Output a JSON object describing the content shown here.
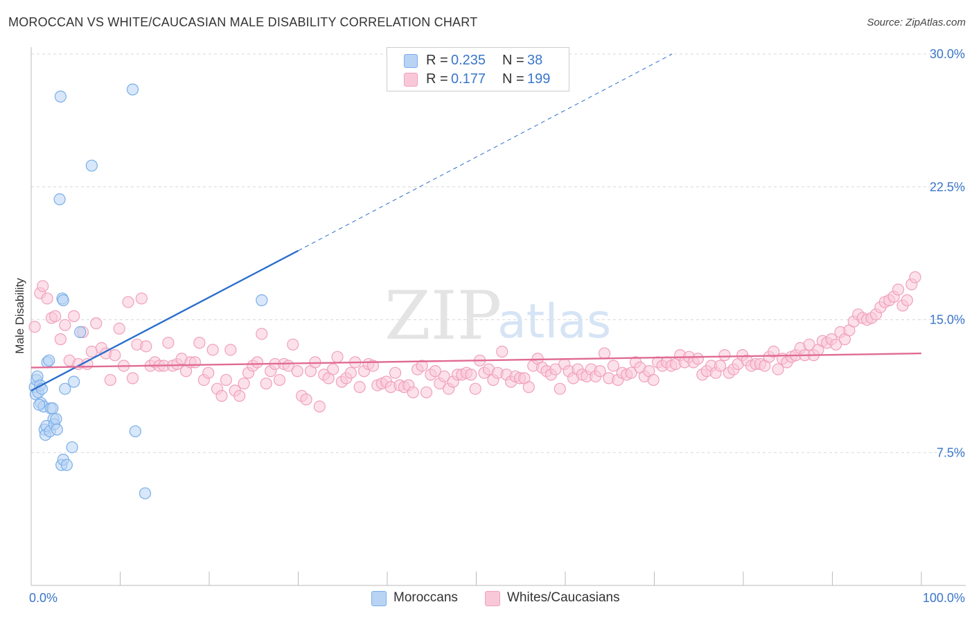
{
  "title": "MOROCCAN VS WHITE/CAUCASIAN MALE DISABILITY CORRELATION CHART",
  "source": "Source: ZipAtlas.com",
  "watermark": {
    "zip": "ZIP",
    "atlas": "atlas"
  },
  "colors": {
    "blue": "#7aaee8",
    "blue_fill": "#b8d3f4",
    "blue_line": "#2b6fcc",
    "pink": "#f0a0ba",
    "pink_fill": "#f9c8d8",
    "pink_line": "#e06a94",
    "tick_text": "#3a76c9",
    "grid": "#d8d8d8"
  },
  "legend": {
    "rows": [
      {
        "r_label": "R =",
        "r_value": "0.235",
        "n_label": "N =",
        "n_value": "38"
      },
      {
        "r_label": "R =",
        "r_value": "0.177",
        "n_label": "N =",
        "n_value": "199"
      }
    ]
  },
  "bottom_legend": [
    "Moroccans",
    "Whites/Caucasians"
  ],
  "chart_data": {
    "type": "scatter",
    "title": "MOROCCAN VS WHITE/CAUCASIAN MALE DISABILITY CORRELATION CHART",
    "xlabel": "",
    "ylabel": "Male Disability",
    "xlim": [
      0,
      100
    ],
    "ylim": [
      0,
      31
    ],
    "x_ticks": [
      "0.0%",
      "100.0%"
    ],
    "y_ticks": [
      {
        "value": 7.5,
        "label": "7.5%"
      },
      {
        "value": 15.0,
        "label": "15.0%"
      },
      {
        "value": 22.5,
        "label": "22.5%"
      },
      {
        "value": 30.0,
        "label": "30.0%"
      }
    ],
    "legend_position": "top-center",
    "series": [
      {
        "name": "Moroccans",
        "color": "#7aaee8",
        "R": 0.235,
        "N": 38,
        "trend": {
          "x_start": 0,
          "y_start": 11.0,
          "x_end": 30,
          "y_end": 18.9,
          "dash_to_x": 72,
          "dash_to_y": 30.0
        },
        "points": [
          [
            0.4,
            11.2
          ],
          [
            0.5,
            10.8
          ],
          [
            0.6,
            11.6
          ],
          [
            0.7,
            11.8
          ],
          [
            0.8,
            10.9
          ],
          [
            1.0,
            11.3
          ],
          [
            1.1,
            10.3
          ],
          [
            1.2,
            11.1
          ],
          [
            1.4,
            10.1
          ],
          [
            1.5,
            8.8
          ],
          [
            1.6,
            8.5
          ],
          [
            1.7,
            9.0
          ],
          [
            1.8,
            12.6
          ],
          [
            2.0,
            12.7
          ],
          [
            2.1,
            8.7
          ],
          [
            2.2,
            10.0
          ],
          [
            2.4,
            10.0
          ],
          [
            2.5,
            9.4
          ],
          [
            2.6,
            9.1
          ],
          [
            2.8,
            9.4
          ],
          [
            2.9,
            8.8
          ],
          [
            3.2,
            21.8
          ],
          [
            3.3,
            27.6
          ],
          [
            3.4,
            6.8
          ],
          [
            3.5,
            16.2
          ],
          [
            3.6,
            7.1
          ],
          [
            3.6,
            16.1
          ],
          [
            3.8,
            11.1
          ],
          [
            4.0,
            6.8
          ],
          [
            4.6,
            7.8
          ],
          [
            4.8,
            11.5
          ],
          [
            5.5,
            14.3
          ],
          [
            6.8,
            23.7
          ],
          [
            11.4,
            28.0
          ],
          [
            11.7,
            8.7
          ],
          [
            12.8,
            5.2
          ],
          [
            25.9,
            16.1
          ],
          [
            0.9,
            10.2
          ]
        ]
      },
      {
        "name": "Whites/Caucasians",
        "color": "#f0a0ba",
        "R": 0.177,
        "N": 199,
        "trend": {
          "x_start": 0,
          "y_start": 12.3,
          "x_end": 100,
          "y_end": 13.1
        },
        "points": [
          [
            0.4,
            14.6
          ],
          [
            1.0,
            16.5
          ],
          [
            1.3,
            16.9
          ],
          [
            1.8,
            16.2
          ],
          [
            2.3,
            15.1
          ],
          [
            2.7,
            15.2
          ],
          [
            3.3,
            13.9
          ],
          [
            3.8,
            14.7
          ],
          [
            4.3,
            12.7
          ],
          [
            4.8,
            15.2
          ],
          [
            5.3,
            12.5
          ],
          [
            5.8,
            14.3
          ],
          [
            6.3,
            12.5
          ],
          [
            6.8,
            13.2
          ],
          [
            7.3,
            14.8
          ],
          [
            7.9,
            13.4
          ],
          [
            8.4,
            13.1
          ],
          [
            8.9,
            11.6
          ],
          [
            9.4,
            13.0
          ],
          [
            9.9,
            14.5
          ],
          [
            10.4,
            12.4
          ],
          [
            10.9,
            16.0
          ],
          [
            11.4,
            11.7
          ],
          [
            11.9,
            13.6
          ],
          [
            12.4,
            16.2
          ],
          [
            12.9,
            13.5
          ],
          [
            13.4,
            12.4
          ],
          [
            13.9,
            12.6
          ],
          [
            14.4,
            12.4
          ],
          [
            14.9,
            12.4
          ],
          [
            15.4,
            13.7
          ],
          [
            15.9,
            12.4
          ],
          [
            16.4,
            12.5
          ],
          [
            16.9,
            12.8
          ],
          [
            17.4,
            12.1
          ],
          [
            17.9,
            12.6
          ],
          [
            18.4,
            12.6
          ],
          [
            18.9,
            13.7
          ],
          [
            19.4,
            11.6
          ],
          [
            19.9,
            12.0
          ],
          [
            20.4,
            13.3
          ],
          [
            20.9,
            11.1
          ],
          [
            21.4,
            10.7
          ],
          [
            21.9,
            11.6
          ],
          [
            22.4,
            13.3
          ],
          [
            22.9,
            11.0
          ],
          [
            23.4,
            10.7
          ],
          [
            23.9,
            11.4
          ],
          [
            24.4,
            12.0
          ],
          [
            24.9,
            12.4
          ],
          [
            25.4,
            12.6
          ],
          [
            25.9,
            14.2
          ],
          [
            26.4,
            11.4
          ],
          [
            26.9,
            12.1
          ],
          [
            27.4,
            12.5
          ],
          [
            27.9,
            11.6
          ],
          [
            28.4,
            12.5
          ],
          [
            28.9,
            12.4
          ],
          [
            29.4,
            13.6
          ],
          [
            29.9,
            12.1
          ],
          [
            30.4,
            10.7
          ],
          [
            30.9,
            10.5
          ],
          [
            31.4,
            12.1
          ],
          [
            31.9,
            12.6
          ],
          [
            32.4,
            10.1
          ],
          [
            32.9,
            11.9
          ],
          [
            33.4,
            11.7
          ],
          [
            33.9,
            12.2
          ],
          [
            34.4,
            12.9
          ],
          [
            34.9,
            11.5
          ],
          [
            35.4,
            11.7
          ],
          [
            35.9,
            12.0
          ],
          [
            36.4,
            12.6
          ],
          [
            36.9,
            11.2
          ],
          [
            37.4,
            12.1
          ],
          [
            37.9,
            12.5
          ],
          [
            38.4,
            12.4
          ],
          [
            38.9,
            11.3
          ],
          [
            39.4,
            11.4
          ],
          [
            39.9,
            11.5
          ],
          [
            40.4,
            11.2
          ],
          [
            40.9,
            12.0
          ],
          [
            41.4,
            11.3
          ],
          [
            41.9,
            11.2
          ],
          [
            42.4,
            11.3
          ],
          [
            42.9,
            10.9
          ],
          [
            43.4,
            12.2
          ],
          [
            43.9,
            12.4
          ],
          [
            44.4,
            10.9
          ],
          [
            44.9,
            11.9
          ],
          [
            45.4,
            12.1
          ],
          [
            45.9,
            11.4
          ],
          [
            46.4,
            11.8
          ],
          [
            46.9,
            11.1
          ],
          [
            47.4,
            11.5
          ],
          [
            47.9,
            11.9
          ],
          [
            48.4,
            11.9
          ],
          [
            48.9,
            12.0
          ],
          [
            49.4,
            11.9
          ],
          [
            49.9,
            11.1
          ],
          [
            50.4,
            12.7
          ],
          [
            50.9,
            12.0
          ],
          [
            51.4,
            12.2
          ],
          [
            51.9,
            11.6
          ],
          [
            52.4,
            12.0
          ],
          [
            52.9,
            13.2
          ],
          [
            53.4,
            11.9
          ],
          [
            53.9,
            11.5
          ],
          [
            54.4,
            11.8
          ],
          [
            54.9,
            11.7
          ],
          [
            55.4,
            11.7
          ],
          [
            55.9,
            11.2
          ],
          [
            56.4,
            12.4
          ],
          [
            56.9,
            12.8
          ],
          [
            57.4,
            12.3
          ],
          [
            57.9,
            12.1
          ],
          [
            58.4,
            11.9
          ],
          [
            58.9,
            12.2
          ],
          [
            59.4,
            11.1
          ],
          [
            59.9,
            12.5
          ],
          [
            60.4,
            12.1
          ],
          [
            60.9,
            11.7
          ],
          [
            61.4,
            12.2
          ],
          [
            61.9,
            11.9
          ],
          [
            62.4,
            11.8
          ],
          [
            62.9,
            12.2
          ],
          [
            63.4,
            11.8
          ],
          [
            63.9,
            12.1
          ],
          [
            64.4,
            13.1
          ],
          [
            64.9,
            11.7
          ],
          [
            65.4,
            12.4
          ],
          [
            65.9,
            11.6
          ],
          [
            66.4,
            12.0
          ],
          [
            66.9,
            11.9
          ],
          [
            67.4,
            12.0
          ],
          [
            67.9,
            12.6
          ],
          [
            68.4,
            12.3
          ],
          [
            68.9,
            11.8
          ],
          [
            69.4,
            12.1
          ],
          [
            69.9,
            11.6
          ],
          [
            70.4,
            12.6
          ],
          [
            70.9,
            12.4
          ],
          [
            71.4,
            12.6
          ],
          [
            71.9,
            12.4
          ],
          [
            72.4,
            12.5
          ],
          [
            72.9,
            13.0
          ],
          [
            73.4,
            12.6
          ],
          [
            73.9,
            12.9
          ],
          [
            74.4,
            12.6
          ],
          [
            74.9,
            12.8
          ],
          [
            75.4,
            11.9
          ],
          [
            75.9,
            12.1
          ],
          [
            76.4,
            12.4
          ],
          [
            76.9,
            12.0
          ],
          [
            77.4,
            12.4
          ],
          [
            77.9,
            13.0
          ],
          [
            78.4,
            12.0
          ],
          [
            78.9,
            12.2
          ],
          [
            79.4,
            12.5
          ],
          [
            79.9,
            13.0
          ],
          [
            80.4,
            12.7
          ],
          [
            80.9,
            12.4
          ],
          [
            81.4,
            12.5
          ],
          [
            81.9,
            12.5
          ],
          [
            82.4,
            12.4
          ],
          [
            82.9,
            12.9
          ],
          [
            83.4,
            13.2
          ],
          [
            83.9,
            12.2
          ],
          [
            84.4,
            12.8
          ],
          [
            84.9,
            12.6
          ],
          [
            85.4,
            12.9
          ],
          [
            85.9,
            13.0
          ],
          [
            86.4,
            13.4
          ],
          [
            86.9,
            13.0
          ],
          [
            87.4,
            13.6
          ],
          [
            87.9,
            13.0
          ],
          [
            88.4,
            13.3
          ],
          [
            88.9,
            13.8
          ],
          [
            89.4,
            13.7
          ],
          [
            89.9,
            13.9
          ],
          [
            90.4,
            13.6
          ],
          [
            90.9,
            14.3
          ],
          [
            91.4,
            13.9
          ],
          [
            91.9,
            14.4
          ],
          [
            92.4,
            14.9
          ],
          [
            92.9,
            15.3
          ],
          [
            93.4,
            15.1
          ],
          [
            93.9,
            15.0
          ],
          [
            94.4,
            15.1
          ],
          [
            94.9,
            15.3
          ],
          [
            95.4,
            15.7
          ],
          [
            95.9,
            16.0
          ],
          [
            96.4,
            16.1
          ],
          [
            96.9,
            16.3
          ],
          [
            97.4,
            16.7
          ],
          [
            97.9,
            15.8
          ],
          [
            98.4,
            16.1
          ],
          [
            98.9,
            17.0
          ],
          [
            99.3,
            17.4
          ]
        ]
      }
    ]
  }
}
